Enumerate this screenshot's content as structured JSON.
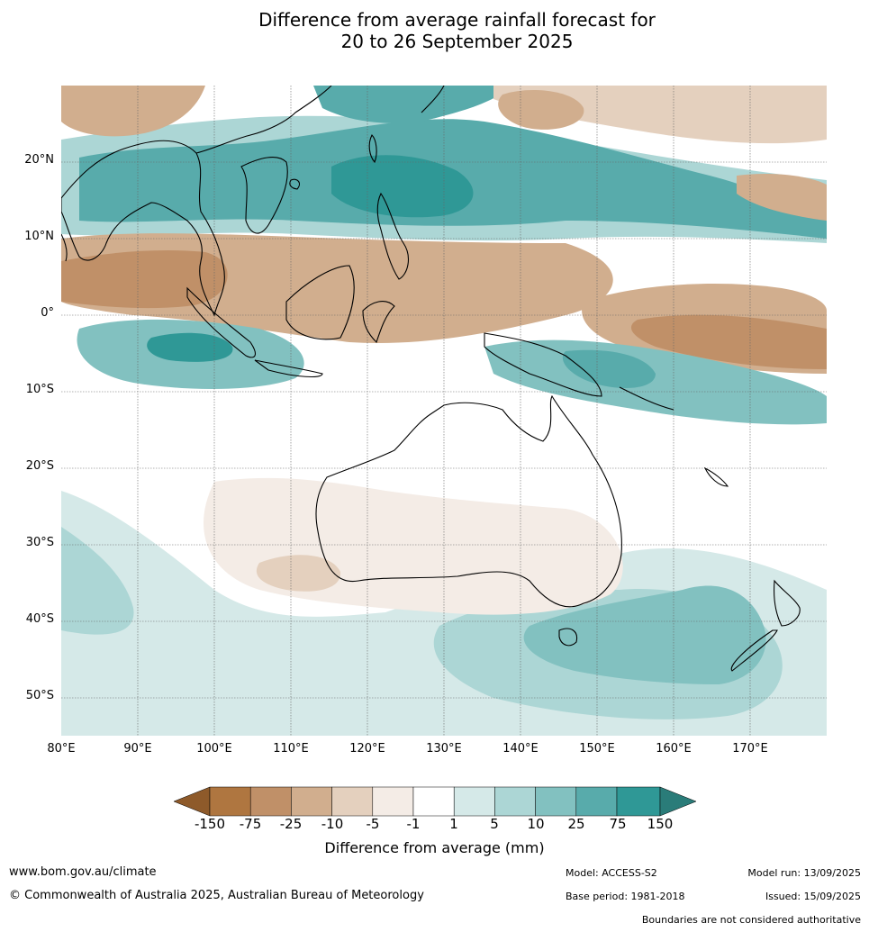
{
  "title_line1": "Difference from average rainfall forecast for",
  "title_line2": "20 to 26 September 2025",
  "lat_labels": [
    "20°N",
    "10°N",
    "0°",
    "10°S",
    "20°S",
    "30°S",
    "40°S",
    "50°S"
  ],
  "lon_labels": [
    "80°E",
    "90°E",
    "100°E",
    "110°E",
    "120°E",
    "130°E",
    "140°E",
    "150°E",
    "160°E",
    "170°E"
  ],
  "colorbar": {
    "ticks": [
      "-150",
      "-75",
      "-25",
      "-10",
      "-5",
      "-1",
      "1",
      "5",
      "10",
      "25",
      "75",
      "150"
    ],
    "colors": [
      "#8e5a2a",
      "#af7640",
      "#c09068",
      "#d1ae8e",
      "#e4d0be",
      "#f4ece6",
      "#ffffff",
      "#d5e9e8",
      "#acd6d5",
      "#82c1c0",
      "#58abab",
      "#2f9896",
      "#2a7c79"
    ],
    "label": "Difference from average (mm)"
  },
  "footer": {
    "website": "www.bom.gov.au/climate",
    "copyright": "© Commonwealth of Australia 2025, Australian Bureau of Meteorology",
    "model": "Model: ACCESS-S2",
    "base_period": "Base period: 1981-2018",
    "model_run": "Model run: 13/09/2025",
    "issued": "Issued: 15/09/2025",
    "disclaimer": "Boundaries are not considered authoritative"
  }
}
